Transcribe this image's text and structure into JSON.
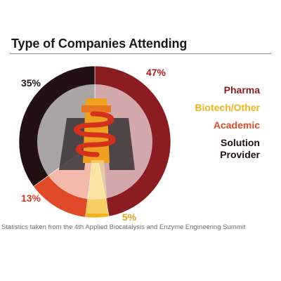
{
  "chart_data": {
    "type": "pie",
    "title": "Type of Companies Attending",
    "categories": [
      "Pharma",
      "Biotech/Other",
      "Academic",
      "Solution Provider"
    ],
    "values": [
      47,
      5,
      13,
      35
    ],
    "value_labels": [
      "47%",
      "5%",
      "13%",
      "35%"
    ],
    "colors": [
      "#8b1c22",
      "#f2b21c",
      "#e04a26",
      "#221012"
    ],
    "legend_position": "right"
  },
  "caption": "Statistics taken from the 4th Applied Biocatalysis and Enzyme Engineering Summit"
}
